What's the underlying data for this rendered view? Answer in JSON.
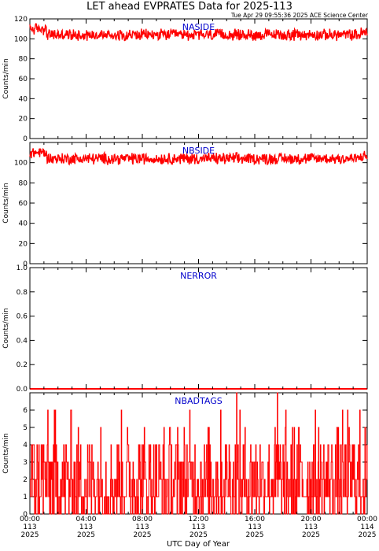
{
  "header": {
    "title": "LET ahead EVPRATES Data for 2025-113",
    "timestamp": "Tue Apr 29 09:55:36 2025 ACE Science Center"
  },
  "colors": {
    "series": "#ff0000",
    "label": "#0000cc",
    "axis": "#000000"
  },
  "chart_data": [
    {
      "type": "line",
      "title": "NASIDE",
      "ylabel": "Counts/min",
      "ylim": [
        0,
        120
      ],
      "yticks": [
        0,
        20,
        40,
        60,
        80,
        100,
        120
      ],
      "baseline": 104,
      "noise": 5,
      "note": "high-frequency noisy trace around ~104 counts/min across the full day"
    },
    {
      "type": "line",
      "title": "NBSIDE",
      "ylabel": "Counts/min",
      "ylim": [
        0,
        120
      ],
      "yticks": [
        0,
        20,
        40,
        60,
        80,
        100
      ],
      "baseline": 104,
      "noise": 5,
      "note": "high-frequency noisy trace around ~104 counts/min across the full day"
    },
    {
      "type": "line",
      "title": "NERROR",
      "ylabel": "Counts/min",
      "ylim": [
        0,
        1.0
      ],
      "yticks": [
        0.0,
        0.2,
        0.4,
        0.6,
        0.8,
        1.0
      ],
      "baseline": 0,
      "noise": 0,
      "note": "constant zero"
    },
    {
      "type": "line",
      "title": "NBADTAGS",
      "ylabel": "Counts/min",
      "ylim": [
        0,
        7
      ],
      "yticks": [
        0,
        1,
        2,
        3,
        4,
        5,
        6
      ],
      "baseline": 2,
      "noise": 2,
      "spikes": [
        {
          "x_hours": 14.7,
          "value": 7
        },
        {
          "x_hours": 17.6,
          "value": 7
        }
      ],
      "note": "integer-valued counts mostly 0-4, occasional peaks of 5-7"
    }
  ],
  "xaxis": {
    "label": "UTC Day of Year",
    "xlim_hours": [
      0,
      24
    ],
    "ticks": [
      {
        "time": "00:00",
        "doy": "113",
        "year": "2025"
      },
      {
        "time": "04:00",
        "doy": "113",
        "year": "2025"
      },
      {
        "time": "08:00",
        "doy": "113",
        "year": "2025"
      },
      {
        "time": "12:00",
        "doy": "113",
        "year": "2025"
      },
      {
        "time": "16:00",
        "doy": "113",
        "year": "2025"
      },
      {
        "time": "20:00",
        "doy": "113",
        "year": "2025"
      },
      {
        "time": "00:00",
        "doy": "114",
        "year": "2025"
      }
    ]
  }
}
